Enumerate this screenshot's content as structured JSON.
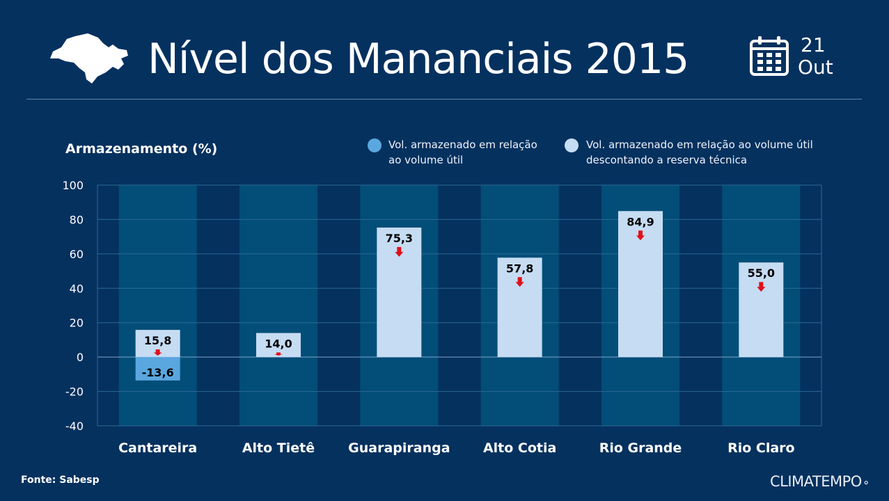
{
  "header": {
    "title": "Nível dos Mananciais 2015",
    "date_day": "21",
    "date_month": "Out",
    "map_icon": "sao-paulo-state-map-icon",
    "calendar_icon": "calendar-icon"
  },
  "chart_data": {
    "type": "bar",
    "ylabel": "Armazenamento (%)",
    "ylim": [
      -40,
      100
    ],
    "yticks": [
      100,
      80,
      60,
      40,
      20,
      0,
      -20,
      -40
    ],
    "grid": true,
    "legend_placement": "top",
    "categories": [
      "Cantareira",
      "Alto Tietê",
      "Guarapiranga",
      "Alto Cotia",
      "Rio Grande",
      "Rio Claro"
    ],
    "series": [
      {
        "name": "Vol. armazenado em relação ao volume útil",
        "color": "#5aa7e0",
        "values": [
          0,
          0,
          0,
          0,
          0,
          0
        ]
      },
      {
        "name": "Vol. armazenado em relação ao volume útil descontando a reserva técnica",
        "color": "#c6dcf3",
        "values": [
          15.8,
          14.0,
          75.3,
          57.8,
          84.9,
          55.0
        ]
      }
    ],
    "negative_reserve": {
      "category": "Cantareira",
      "value": -13.6,
      "color": "#5aa7e0"
    },
    "data_labels": [
      "15,8",
      "14,0",
      "75,3",
      "57,8",
      "84,9",
      "55,0"
    ],
    "negative_label": "-13,6",
    "trend": [
      "down",
      "down",
      "down",
      "down",
      "down",
      "down"
    ],
    "colors": {
      "background": "#05315f",
      "column_band": "#024e78",
      "arrow": "#e0101a"
    }
  },
  "legend": {
    "item1": "Vol. armazenado em relação ao volume útil",
    "item2": "Vol. armazenado em relação ao volume útil descontando a reserva técnica"
  },
  "footer": {
    "source": "Fonte: Sabesp",
    "brand": "CLIMATEMPO"
  }
}
